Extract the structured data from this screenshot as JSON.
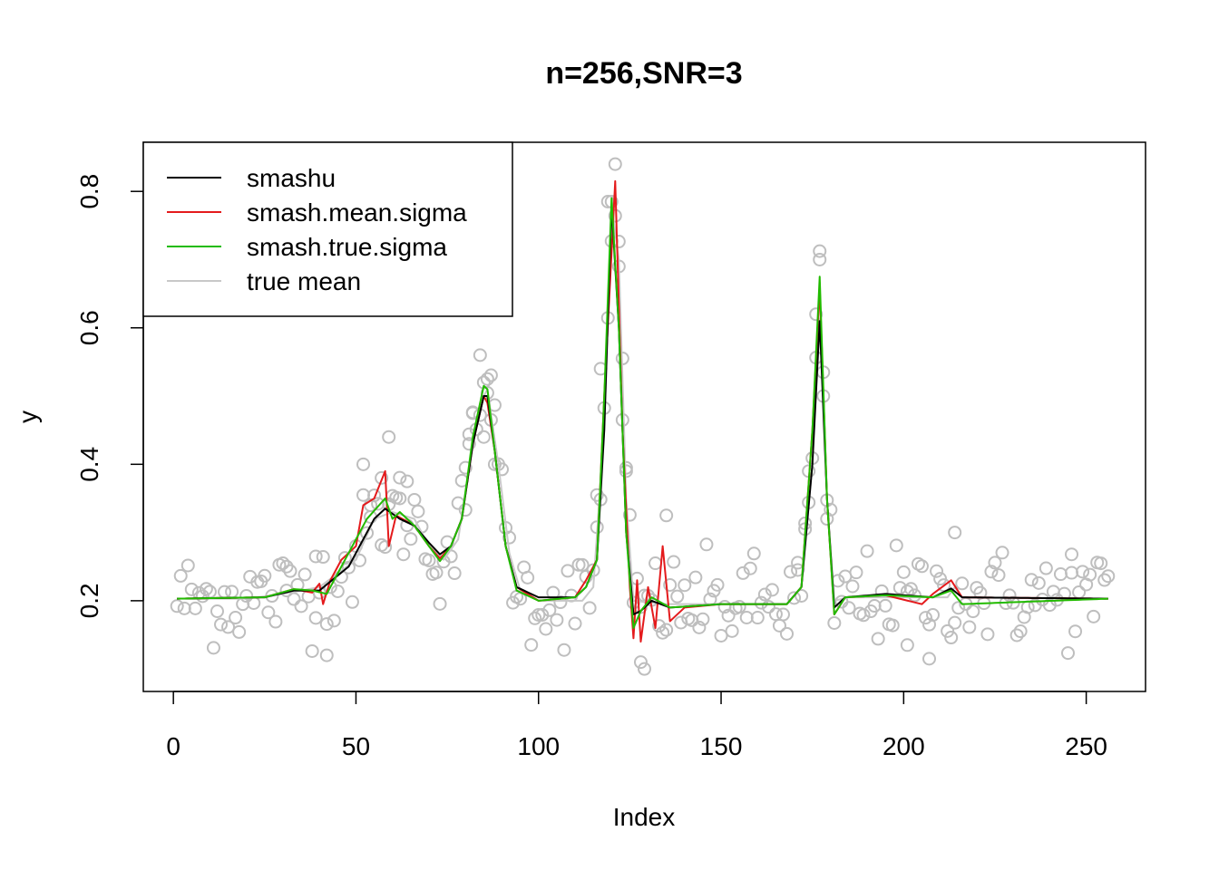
{
  "chart_data": {
    "type": "line",
    "title": "n=256,SNR=3",
    "xlabel": "Index",
    "ylabel": "y",
    "xlim": [
      -8.24,
      266.24
    ],
    "ylim": [
      0.067,
      0.872
    ],
    "x_ticks": [
      0,
      50,
      100,
      150,
      200,
      250
    ],
    "y_ticks": [
      0.2,
      0.4,
      0.6,
      0.8
    ],
    "legend_position": "top-left",
    "colors": {
      "smashu": "#000000",
      "smash.mean.sigma": "#e41a1c",
      "smash.true.sigma": "#22bb00",
      "true mean": "#c8c8c8",
      "points": "#bebebe"
    },
    "legend": [
      "smashu",
      "smash.mean.sigma",
      "smash.true.sigma",
      "true mean"
    ],
    "true_mean_knots": [
      [
        1,
        0.203
      ],
      [
        20,
        0.203
      ],
      [
        30,
        0.21
      ],
      [
        40,
        0.22
      ],
      [
        50,
        0.26
      ],
      [
        55,
        0.32
      ],
      [
        60,
        0.33
      ],
      [
        66,
        0.32
      ],
      [
        70,
        0.28
      ],
      [
        74,
        0.26
      ],
      [
        78,
        0.29
      ],
      [
        80,
        0.36
      ],
      [
        84,
        0.49
      ],
      [
        86,
        0.51
      ],
      [
        89,
        0.4
      ],
      [
        92,
        0.27
      ],
      [
        95,
        0.215
      ],
      [
        100,
        0.2
      ],
      [
        112,
        0.2
      ],
      [
        115,
        0.22
      ],
      [
        118,
        0.45
      ],
      [
        120,
        0.78
      ],
      [
        122,
        0.7
      ],
      [
        124,
        0.35
      ],
      [
        126,
        0.2
      ],
      [
        135,
        0.195
      ],
      [
        150,
        0.195
      ],
      [
        168,
        0.195
      ],
      [
        172,
        0.22
      ],
      [
        175,
        0.4
      ],
      [
        177,
        0.66
      ],
      [
        179,
        0.35
      ],
      [
        181,
        0.2
      ],
      [
        185,
        0.205
      ],
      [
        212,
        0.205
      ],
      [
        214,
        0.22
      ],
      [
        216,
        0.205
      ],
      [
        256,
        0.203
      ]
    ],
    "smashu_knots": [
      [
        1,
        0.203
      ],
      [
        25,
        0.205
      ],
      [
        33,
        0.215
      ],
      [
        40,
        0.215
      ],
      [
        48,
        0.25
      ],
      [
        55,
        0.32
      ],
      [
        58,
        0.335
      ],
      [
        62,
        0.32
      ],
      [
        66,
        0.31
      ],
      [
        70,
        0.285
      ],
      [
        73,
        0.268
      ],
      [
        76,
        0.28
      ],
      [
        79,
        0.32
      ],
      [
        82,
        0.43
      ],
      [
        85,
        0.5
      ],
      [
        86,
        0.5
      ],
      [
        88,
        0.42
      ],
      [
        91,
        0.28
      ],
      [
        94,
        0.22
      ],
      [
        100,
        0.205
      ],
      [
        110,
        0.205
      ],
      [
        113,
        0.22
      ],
      [
        116,
        0.26
      ],
      [
        118,
        0.45
      ],
      [
        120,
        0.78
      ],
      [
        122,
        0.6
      ],
      [
        124,
        0.3
      ],
      [
        126,
        0.18
      ],
      [
        128,
        0.185
      ],
      [
        131,
        0.2
      ],
      [
        136,
        0.19
      ],
      [
        150,
        0.195
      ],
      [
        168,
        0.195
      ],
      [
        172,
        0.22
      ],
      [
        175,
        0.4
      ],
      [
        177,
        0.61
      ],
      [
        179,
        0.35
      ],
      [
        181,
        0.19
      ],
      [
        184,
        0.205
      ],
      [
        195,
        0.21
      ],
      [
        208,
        0.205
      ],
      [
        213,
        0.218
      ],
      [
        216,
        0.205
      ],
      [
        256,
        0.203
      ]
    ],
    "smash_mean_sigma_knots": [
      [
        1,
        0.203
      ],
      [
        25,
        0.205
      ],
      [
        33,
        0.217
      ],
      [
        38,
        0.212
      ],
      [
        40,
        0.225
      ],
      [
        41,
        0.195
      ],
      [
        43,
        0.23
      ],
      [
        46,
        0.26
      ],
      [
        50,
        0.28
      ],
      [
        52,
        0.34
      ],
      [
        55,
        0.35
      ],
      [
        58,
        0.39
      ],
      [
        59,
        0.28
      ],
      [
        61,
        0.325
      ],
      [
        66,
        0.31
      ],
      [
        70,
        0.28
      ],
      [
        73,
        0.262
      ],
      [
        76,
        0.28
      ],
      [
        79,
        0.32
      ],
      [
        82,
        0.43
      ],
      [
        85,
        0.5
      ],
      [
        86,
        0.49
      ],
      [
        88,
        0.42
      ],
      [
        91,
        0.28
      ],
      [
        94,
        0.22
      ],
      [
        100,
        0.2
      ],
      [
        110,
        0.205
      ],
      [
        113,
        0.23
      ],
      [
        116,
        0.26
      ],
      [
        118,
        0.5
      ],
      [
        121,
        0.815
      ],
      [
        123,
        0.45
      ],
      [
        125,
        0.22
      ],
      [
        126,
        0.145
      ],
      [
        127,
        0.23
      ],
      [
        128,
        0.14
      ],
      [
        130,
        0.22
      ],
      [
        132,
        0.16
      ],
      [
        134,
        0.28
      ],
      [
        136,
        0.17
      ],
      [
        140,
        0.19
      ],
      [
        150,
        0.195
      ],
      [
        168,
        0.195
      ],
      [
        172,
        0.22
      ],
      [
        175,
        0.45
      ],
      [
        177,
        0.66
      ],
      [
        179,
        0.35
      ],
      [
        181,
        0.18
      ],
      [
        184,
        0.205
      ],
      [
        195,
        0.208
      ],
      [
        205,
        0.195
      ],
      [
        208,
        0.21
      ],
      [
        213,
        0.23
      ],
      [
        216,
        0.205
      ],
      [
        256,
        0.203
      ]
    ],
    "smash_true_sigma_knots": [
      [
        1,
        0.203
      ],
      [
        25,
        0.205
      ],
      [
        33,
        0.217
      ],
      [
        38,
        0.215
      ],
      [
        42,
        0.21
      ],
      [
        46,
        0.25
      ],
      [
        50,
        0.29
      ],
      [
        53,
        0.32
      ],
      [
        58,
        0.35
      ],
      [
        60,
        0.32
      ],
      [
        62,
        0.33
      ],
      [
        66,
        0.31
      ],
      [
        70,
        0.28
      ],
      [
        73,
        0.258
      ],
      [
        76,
        0.28
      ],
      [
        79,
        0.32
      ],
      [
        82,
        0.44
      ],
      [
        85,
        0.515
      ],
      [
        86,
        0.51
      ],
      [
        88,
        0.42
      ],
      [
        91,
        0.28
      ],
      [
        94,
        0.215
      ],
      [
        100,
        0.2
      ],
      [
        110,
        0.205
      ],
      [
        113,
        0.22
      ],
      [
        116,
        0.26
      ],
      [
        118,
        0.5
      ],
      [
        120,
        0.79
      ],
      [
        122,
        0.6
      ],
      [
        124,
        0.3
      ],
      [
        126,
        0.16
      ],
      [
        128,
        0.185
      ],
      [
        131,
        0.205
      ],
      [
        136,
        0.19
      ],
      [
        150,
        0.195
      ],
      [
        168,
        0.195
      ],
      [
        172,
        0.22
      ],
      [
        175,
        0.45
      ],
      [
        177,
        0.675
      ],
      [
        179,
        0.35
      ],
      [
        181,
        0.18
      ],
      [
        184,
        0.205
      ],
      [
        195,
        0.208
      ],
      [
        208,
        0.205
      ],
      [
        213,
        0.215
      ],
      [
        216,
        0.195
      ],
      [
        256,
        0.203
      ]
    ],
    "extra_points": [
      [
        59,
        0.44
      ],
      [
        52,
        0.4
      ],
      [
        84,
        0.56
      ],
      [
        121,
        0.84
      ],
      [
        120,
        0.785
      ],
      [
        117,
        0.54
      ],
      [
        122,
        0.69
      ],
      [
        177,
        0.7
      ],
      [
        176,
        0.62
      ],
      [
        178,
        0.5
      ],
      [
        174,
        0.39
      ],
      [
        119,
        0.785
      ],
      [
        123,
        0.465
      ],
      [
        124,
        0.39
      ],
      [
        86,
        0.525
      ],
      [
        85,
        0.52
      ],
      [
        82,
        0.475
      ],
      [
        87,
        0.465
      ],
      [
        42,
        0.12
      ],
      [
        129,
        0.1
      ],
      [
        128,
        0.11
      ],
      [
        135,
        0.325
      ],
      [
        39,
        0.265
      ],
      [
        31,
        0.215
      ],
      [
        246,
        0.268
      ],
      [
        214,
        0.3
      ],
      [
        207,
        0.115
      ],
      [
        201,
        0.135
      ],
      [
        171,
        0.245
      ],
      [
        173,
        0.305
      ],
      [
        179,
        0.32
      ],
      [
        116,
        0.355
      ],
      [
        88,
        0.4
      ],
      [
        80,
        0.395
      ],
      [
        81,
        0.43
      ],
      [
        64,
        0.375
      ],
      [
        62,
        0.35
      ],
      [
        57,
        0.38
      ],
      [
        54,
        0.34
      ]
    ]
  }
}
